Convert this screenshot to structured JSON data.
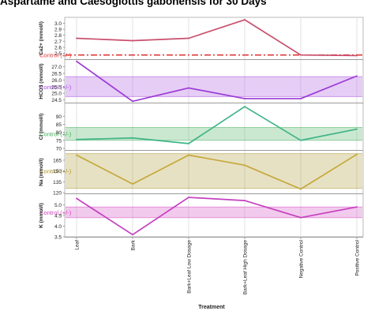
{
  "title": "Aspartame and Caesoglottis gabonensis for 30 Days",
  "chart_data": {
    "type": "line",
    "xlabel": "Treatment",
    "categories": [
      "Leaf",
      "Bark",
      "Bark+Leaf Low Dosage",
      "Bark+Leaf High Dosage",
      "Negative Control",
      "Positive Control"
    ],
    "colors": {
      "ca": "#c94f6d",
      "hco3": "#9b3ad6",
      "cl": "#3fb488",
      "na": "#c4a83a",
      "k": "#c43fbf",
      "control_ca": "#e03a3a",
      "control_hco3": "#a64ae0",
      "control_cl": "#3fae56",
      "control_na": "#a89327",
      "control_k": "#d23fbf"
    },
    "panels": [
      {
        "id": "ca",
        "ylabel": "Ca2+ (mmol/l)",
        "yticks": [
          "2.5",
          "2.6",
          "2.7",
          "2.8",
          "2.9",
          "3.0"
        ],
        "ylim": [
          2.4,
          3.1
        ],
        "values": [
          2.75,
          2.71,
          2.75,
          3.06,
          2.47,
          2.46
        ],
        "control_label": "Control (+/-)",
        "control_band": null,
        "control_line": 2.47
      },
      {
        "id": "hco3",
        "ylabel": "HCO3 (mmol/l)",
        "yticks": [
          "24.5",
          "25.0",
          "25.5",
          "26.0",
          "26.5",
          "27.0"
        ],
        "ylim": [
          24.3,
          27.5
        ],
        "values": [
          27.4,
          24.4,
          25.4,
          24.6,
          24.6,
          26.3
        ],
        "control_label": "Control (+/-)",
        "control_band": [
          24.75,
          26.25
        ]
      },
      {
        "id": "cl",
        "ylabel": "Cl (mmol/l)",
        "yticks": [
          "70",
          "75",
          "80",
          "85",
          "90"
        ],
        "ylim": [
          69,
          98
        ],
        "values": [
          75.5,
          76.5,
          73,
          96,
          75,
          82
        ],
        "control_label": "Control (+/-)",
        "control_band": [
          75,
          83
        ]
      },
      {
        "id": "na",
        "ylabel": "Na (mmol/l)",
        "yticks": [
          "120",
          "135",
          "150",
          "165"
        ],
        "ylim": [
          119,
          178
        ],
        "values": [
          172,
          132,
          172,
          158,
          125,
          173
        ],
        "control_label": "Control (+/-)",
        "control_band": [
          126,
          174
        ]
      },
      {
        "id": "k",
        "ylabel": "K (mmol/l)",
        "yticks": [
          "3.5",
          "4.0",
          "4.5",
          "5.0"
        ],
        "ylim": [
          3.5,
          5.5
        ],
        "values": [
          5.3,
          3.6,
          5.35,
          5.2,
          4.4,
          4.9
        ],
        "control_label": "Control (+/-)",
        "control_band": [
          4.4,
          4.9
        ]
      }
    ]
  }
}
